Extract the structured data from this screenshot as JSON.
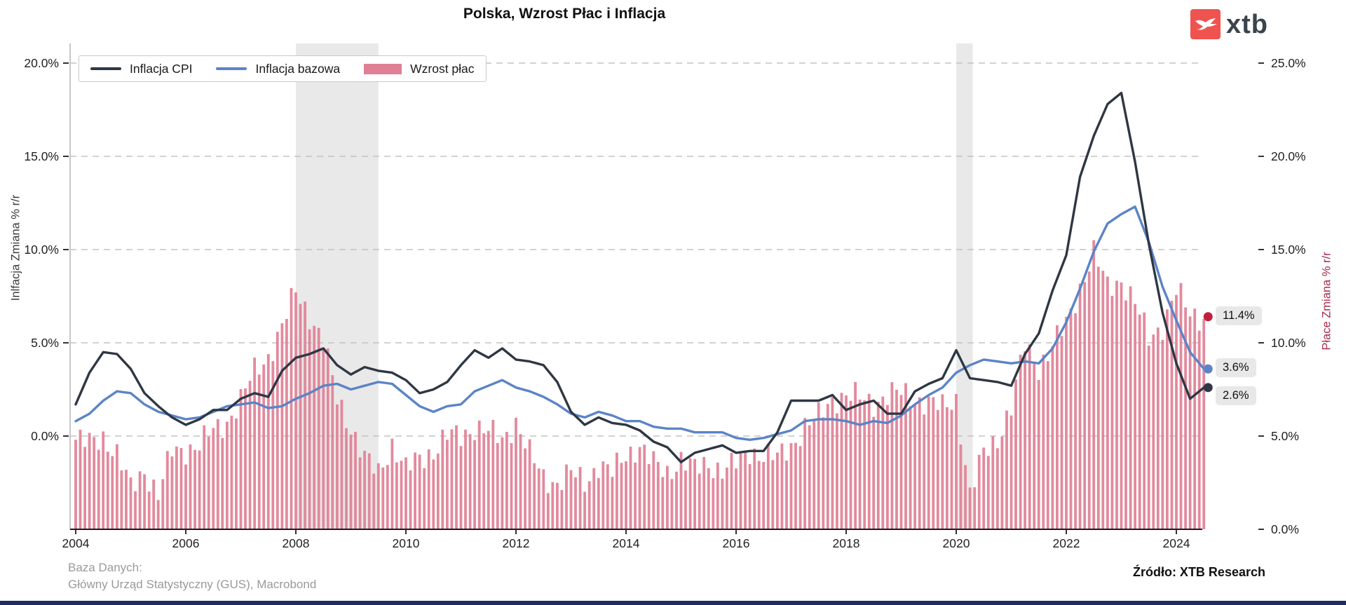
{
  "header": {
    "title": "Polska, Wzrost Płac i Inflacja",
    "logo_text": "xtb"
  },
  "legend": {
    "items": [
      {
        "label": "Inflacja CPI",
        "swatch": "line",
        "color": "#2e3743"
      },
      {
        "label": "Inflacja bazowa",
        "swatch": "line",
        "color": "#5b84c6"
      },
      {
        "label": "Wzrost płac",
        "swatch": "rect",
        "color": "#df8095"
      }
    ]
  },
  "chart_data": {
    "type": "mixed",
    "title": "Polska, Wzrost Płac i Inflacja",
    "t_start": 2004.0,
    "t_step": 0.25,
    "x_ticks": [
      2004,
      2006,
      2008,
      2010,
      2012,
      2014,
      2016,
      2018,
      2020,
      2022,
      2024
    ],
    "left_axis": {
      "label": "Inlfacja Zmiana % r/r",
      "tick_values": [
        20,
        15,
        10,
        5,
        0
      ],
      "tick_labels": [
        "20.0%",
        "15.0%",
        "10.0%",
        "5.0%",
        "0.0%"
      ],
      "min": -5,
      "max": 21,
      "color": "#3a3a3a"
    },
    "right_axis": {
      "label": "Płace Zmiana % r/r",
      "tick_values": [
        25,
        20,
        15,
        10,
        5,
        0
      ],
      "tick_labels": [
        "25.0%",
        "20.0%",
        "15.0%",
        "10.0%",
        "5.0%",
        "0.0%"
      ],
      "min": 0,
      "max": 26,
      "color": "#a8294a"
    },
    "grid": {
      "horizontal": true,
      "style": "dashed",
      "color": "#c3c3c3"
    },
    "shaded_bands": [
      [
        2008.0,
        2009.5
      ],
      [
        2020.0,
        2020.3
      ]
    ],
    "series": [
      {
        "name": "Inflacja CPI",
        "type": "line",
        "axis": "left",
        "color": "#2e3743",
        "values": [
          1.7,
          3.4,
          4.5,
          4.4,
          3.6,
          2.3,
          1.6,
          1.0,
          0.6,
          0.9,
          1.4,
          1.4,
          2.0,
          2.3,
          2.1,
          3.5,
          4.2,
          4.4,
          4.7,
          3.8,
          3.3,
          3.7,
          3.5,
          3.4,
          3.0,
          2.3,
          2.5,
          2.9,
          3.8,
          4.6,
          4.2,
          4.7,
          4.1,
          4.0,
          3.8,
          2.9,
          1.3,
          0.6,
          1.0,
          0.7,
          0.6,
          0.3,
          -0.3,
          -0.6,
          -1.4,
          -0.9,
          -0.7,
          -0.5,
          -0.9,
          -0.8,
          -0.8,
          0.2,
          1.9,
          1.9,
          1.9,
          2.2,
          1.4,
          1.7,
          1.9,
          1.2,
          1.2,
          2.4,
          2.8,
          3.1,
          4.6,
          3.1,
          3.0,
          2.9,
          2.7,
          4.4,
          5.5,
          7.8,
          9.7,
          13.9,
          16.1,
          17.8,
          18.4,
          14.7,
          10.3,
          6.6,
          3.9,
          2.0,
          2.6
        ]
      },
      {
        "name": "Inflacja bazowa",
        "type": "line",
        "axis": "left",
        "color": "#5b84c6",
        "values": [
          0.8,
          1.2,
          1.9,
          2.4,
          2.3,
          1.7,
          1.3,
          1.1,
          0.9,
          1.0,
          1.3,
          1.6,
          1.7,
          1.8,
          1.5,
          1.6,
          2.0,
          2.3,
          2.7,
          2.8,
          2.5,
          2.7,
          2.9,
          2.8,
          2.2,
          1.6,
          1.3,
          1.6,
          1.7,
          2.4,
          2.7,
          3.0,
          2.6,
          2.4,
          2.1,
          1.7,
          1.2,
          1.0,
          1.3,
          1.1,
          0.8,
          0.8,
          0.5,
          0.4,
          0.4,
          0.2,
          0.2,
          0.2,
          -0.1,
          -0.2,
          -0.1,
          0.1,
          0.3,
          0.8,
          0.9,
          0.9,
          0.8,
          0.6,
          0.8,
          0.7,
          1.1,
          1.7,
          2.2,
          2.6,
          3.4,
          3.8,
          4.1,
          4.0,
          3.9,
          4.0,
          3.9,
          4.7,
          6.1,
          7.9,
          9.9,
          11.4,
          11.9,
          12.3,
          10.4,
          8.0,
          6.2,
          4.5,
          3.6
        ]
      },
      {
        "name": "Wzrost płac",
        "type": "bar",
        "axis": "right",
        "color": "#df8095",
        "values": [
          4.8,
          4.6,
          5.0,
          4.0,
          2.2,
          3.2,
          1.8,
          4.2,
          4.3,
          4.5,
          5.3,
          5.8,
          6.9,
          8.5,
          9.3,
          10.8,
          12.8,
          11.5,
          10.0,
          7.0,
          5.5,
          3.8,
          3.0,
          4.6,
          3.2,
          3.8,
          4.2,
          5.0,
          5.0,
          5.5,
          5.2,
          4.8,
          5.8,
          4.0,
          2.8,
          2.5,
          3.0,
          2.5,
          3.5,
          3.0,
          4.0,
          4.5,
          3.5,
          3.0,
          3.8,
          3.2,
          3.5,
          3.2,
          3.5,
          4.2,
          4.0,
          3.8,
          4.5,
          5.5,
          6.0,
          7.0,
          7.2,
          7.0,
          6.8,
          7.2,
          7.3,
          7.0,
          6.8,
          6.5,
          7.0,
          1.8,
          4.1,
          4.9,
          6.5,
          9.9,
          8.7,
          9.8,
          11.0,
          13.0,
          14.8,
          13.0,
          13.4,
          12.1,
          10.2,
          11.0,
          12.8,
          11.5,
          11.4
        ]
      }
    ],
    "end_labels": [
      {
        "text": "11.4%",
        "value": 11.4,
        "axis": "right",
        "dot_color": "#c11f3e"
      },
      {
        "text": "3.6%",
        "value": 3.6,
        "axis": "left",
        "dot_color": "#5b84c6"
      },
      {
        "text": "2.6%",
        "value": 2.6,
        "axis": "left",
        "dot_color": "#2e3743"
      }
    ]
  },
  "footer": {
    "db_label": "Baza Danych:",
    "db_value": "Główny Urząd Statystyczny (GUS), Macrobond",
    "credit": "Źródło: XTB Research"
  }
}
